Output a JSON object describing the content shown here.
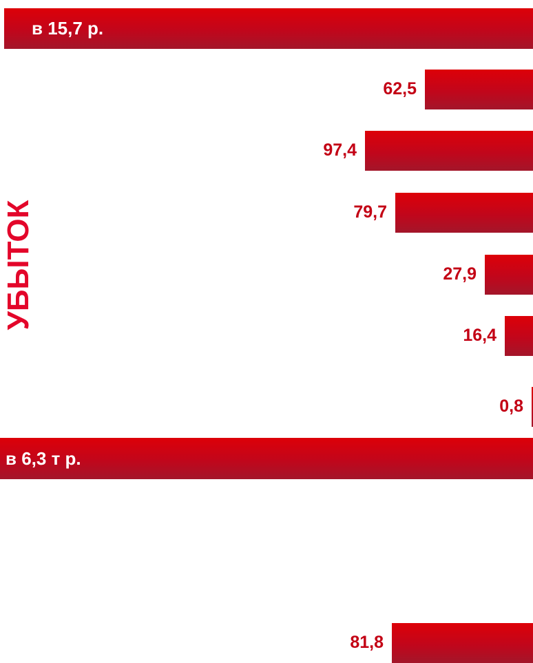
{
  "header_top": "в 15,7 р.",
  "header_bottom": "в 6,3 т р.",
  "vertical_label": "УБЫТОК",
  "colors": {
    "accent": "#d40011",
    "value_text": "#c30014",
    "vertical_label": "#e3062a"
  },
  "chart_data": {
    "type": "bar",
    "orientation": "horizontal",
    "direction": "right-aligned",
    "title": "",
    "xlabel": "",
    "ylabel": "УБЫТОК",
    "xlim": [
      0,
      115
    ],
    "groups": [
      {
        "header": "в 15,7 р.",
        "values": [
          62.5,
          97.4,
          79.7,
          27.9,
          16.4,
          0.8
        ],
        "value_labels": [
          "62,5",
          "97,4",
          "79,7",
          "27,9",
          "16,4",
          "0,8"
        ]
      },
      {
        "header": "в 6,3 т р.",
        "values": [
          81.8
        ],
        "value_labels": [
          "81,8"
        ]
      }
    ]
  }
}
